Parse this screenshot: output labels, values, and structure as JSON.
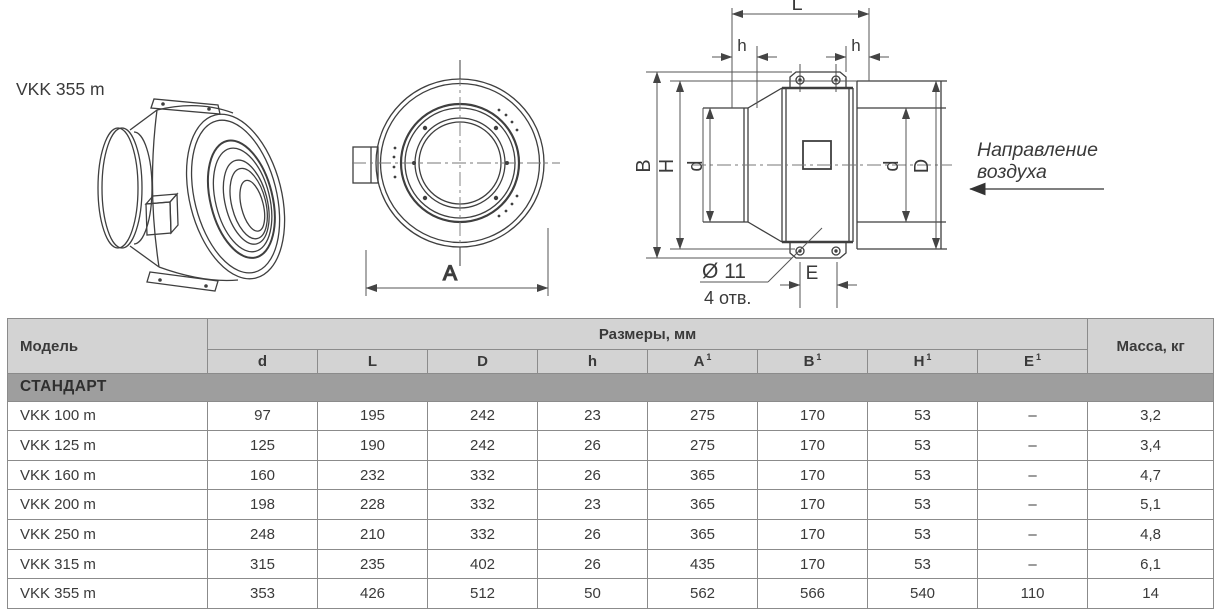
{
  "drawing": {
    "title": "VKK 355 m",
    "front_view": {
      "A": "A"
    },
    "side_view": {
      "L": "L",
      "h_left": "h",
      "h_right": "h",
      "B": "B",
      "H": "H",
      "d_left": "d",
      "d_right": "d",
      "D": "D",
      "E": "E",
      "holes_diameter": "Ø 11",
      "holes_count": "4 отв."
    },
    "air_direction": {
      "line1": "Направление",
      "line2": "воздуха"
    }
  },
  "table": {
    "model_header": "Модель",
    "dims_group_header": "Размеры, мм",
    "mass_header": "Масса, кг",
    "sub_headers": [
      {
        "base": "d",
        "sup": ""
      },
      {
        "base": "L",
        "sup": ""
      },
      {
        "base": "D",
        "sup": ""
      },
      {
        "base": "h",
        "sup": ""
      },
      {
        "base": "A",
        "sup": "1"
      },
      {
        "base": "B",
        "sup": "1"
      },
      {
        "base": "H",
        "sup": "1"
      },
      {
        "base": "E",
        "sup": "1"
      }
    ],
    "section_label": "СТАНДАРТ",
    "rows": [
      {
        "model": "VKK 100 m",
        "values": [
          "97",
          "195",
          "242",
          "23",
          "275",
          "170",
          "53",
          "–"
        ],
        "mass": "3,2"
      },
      {
        "model": "VKK 125 m",
        "values": [
          "125",
          "190",
          "242",
          "26",
          "275",
          "170",
          "53",
          "–"
        ],
        "mass": "3,4"
      },
      {
        "model": "VKK 160 m",
        "values": [
          "160",
          "232",
          "332",
          "26",
          "365",
          "170",
          "53",
          "–"
        ],
        "mass": "4,7"
      },
      {
        "model": "VKK 200 m",
        "values": [
          "198",
          "228",
          "332",
          "23",
          "365",
          "170",
          "53",
          "–"
        ],
        "mass": "5,1"
      },
      {
        "model": "VKK 250 m",
        "values": [
          "248",
          "210",
          "332",
          "26",
          "365",
          "170",
          "53",
          "–"
        ],
        "mass": "4,8"
      },
      {
        "model": "VKK 315 m",
        "values": [
          "315",
          "235",
          "402",
          "26",
          "435",
          "170",
          "53",
          "–"
        ],
        "mass": "6,1"
      },
      {
        "model": "VKK 355 m",
        "values": [
          "353",
          "426",
          "512",
          "50",
          "562",
          "566",
          "540",
          "110"
        ],
        "mass": "14"
      }
    ]
  }
}
